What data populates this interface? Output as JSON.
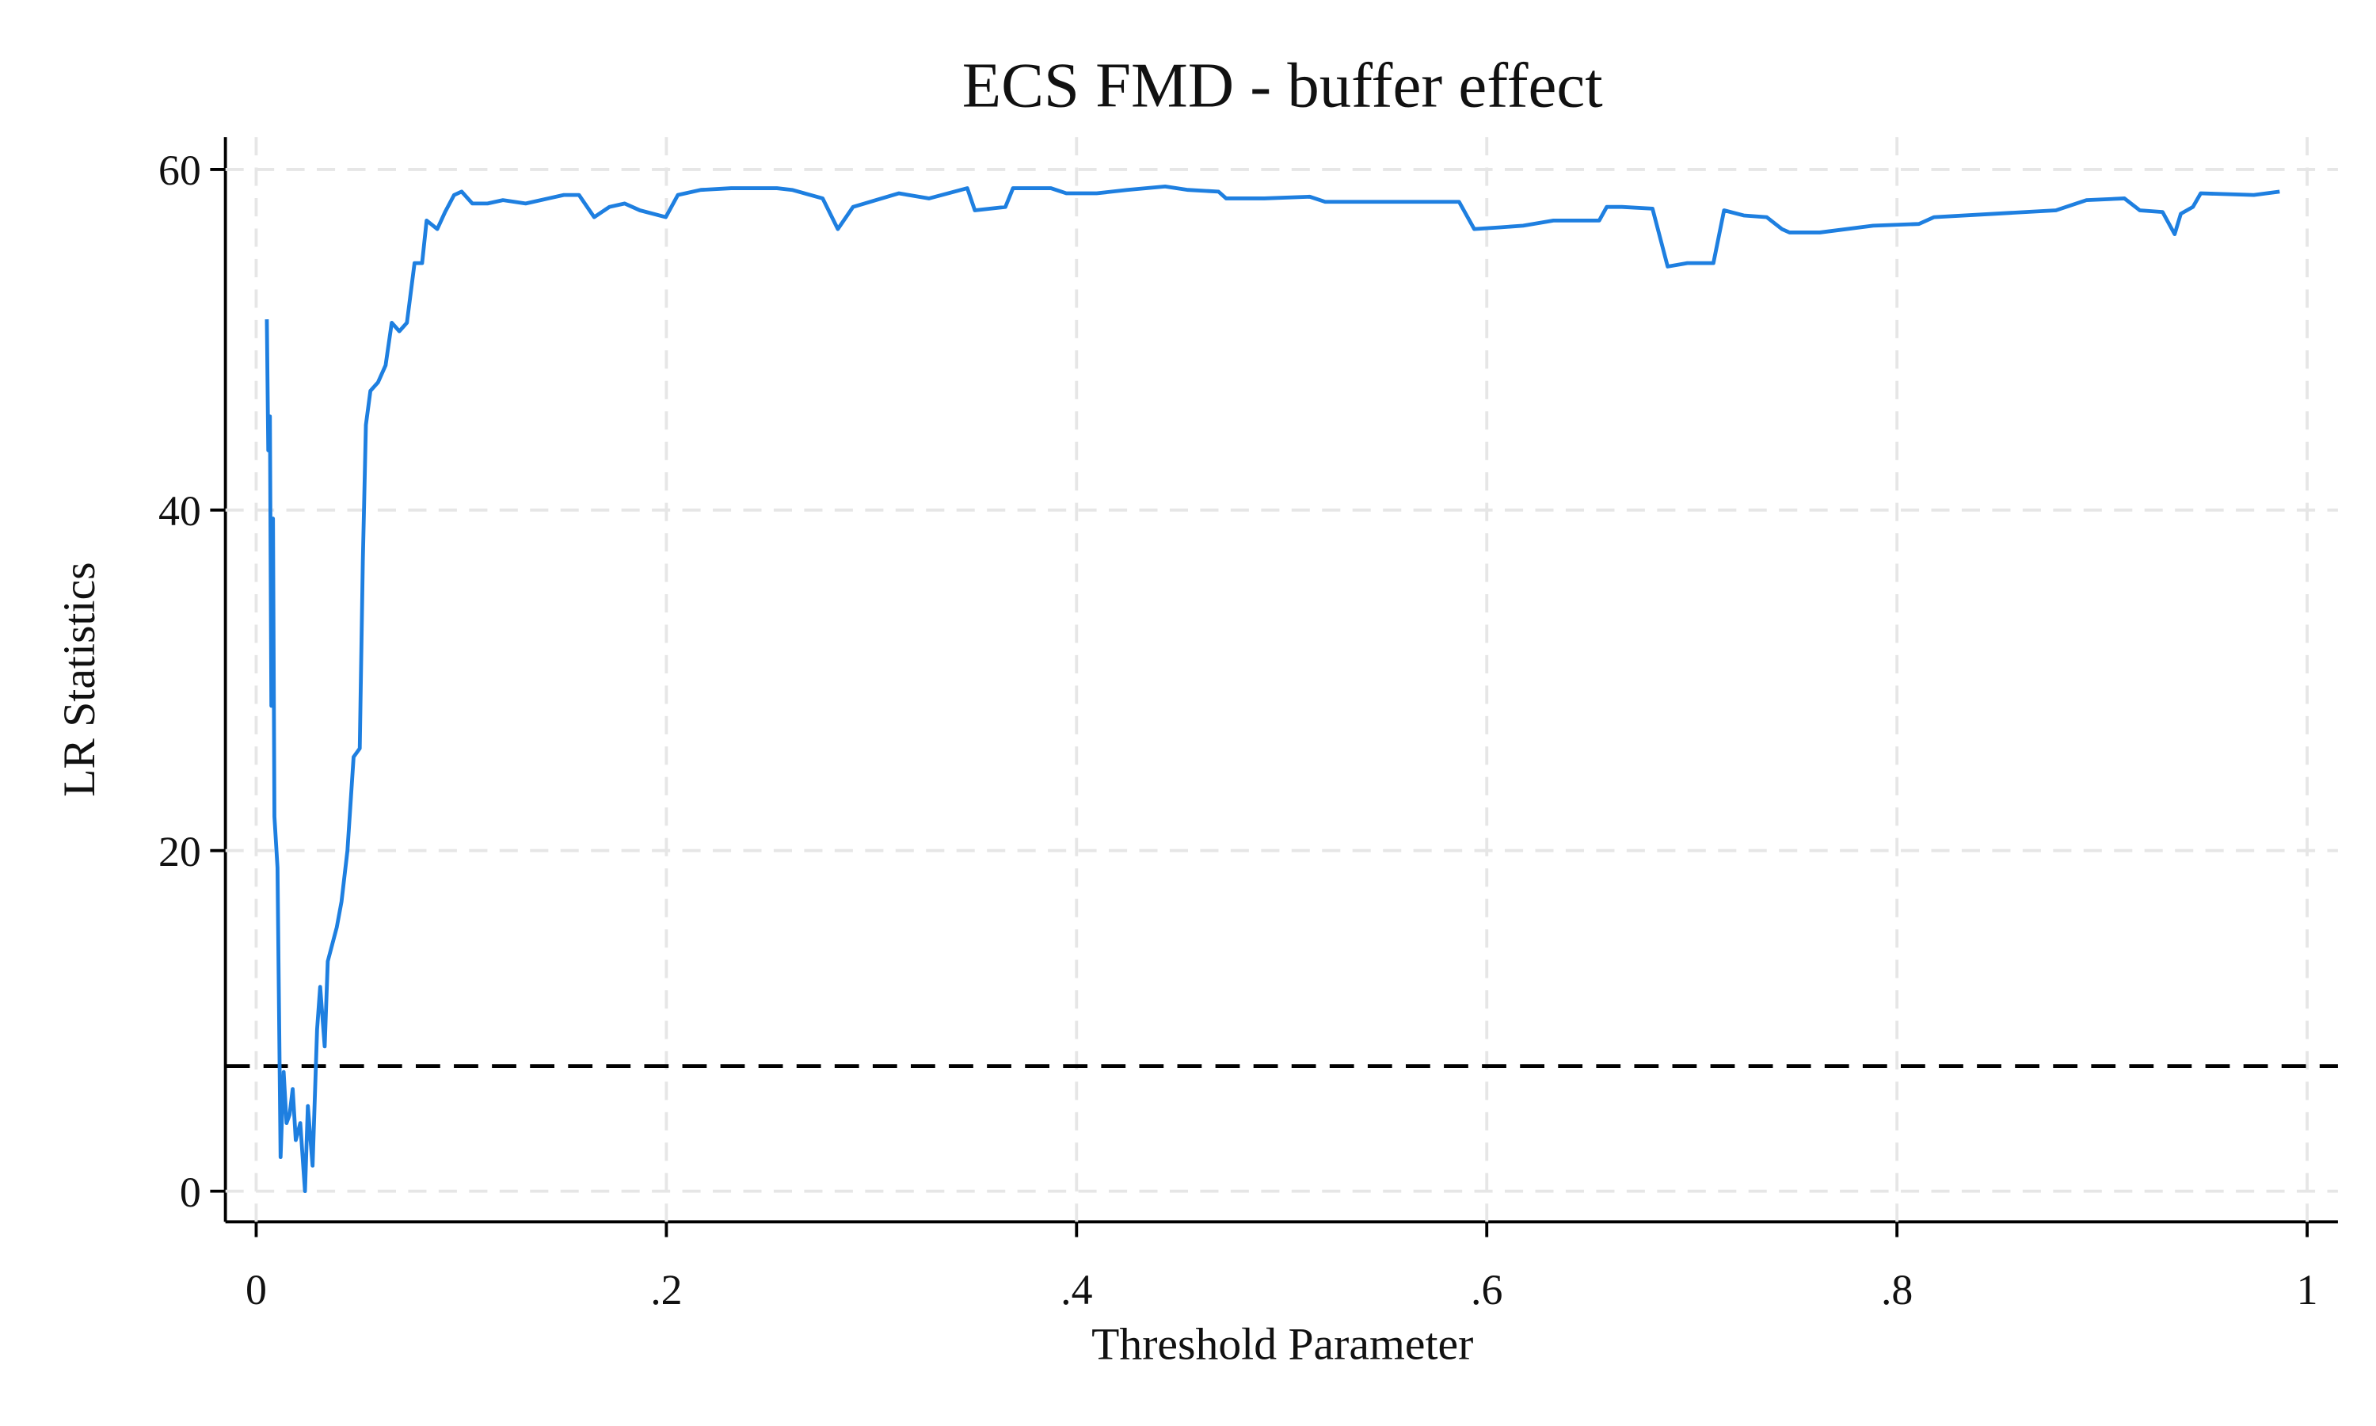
{
  "chart_data": {
    "type": "line",
    "title": "ECS FMD - buffer effect",
    "x_label": "Threshold Parameter",
    "y_label": "LR Statistics",
    "xlim": [
      -0.015,
      1.015
    ],
    "ylim": [
      -1.8,
      61.9
    ],
    "xticks": [
      0,
      {
        "value": 0.2,
        "label": ".2"
      },
      {
        "value": 0.4,
        "label": ".4"
      },
      {
        "value": 0.6,
        "label": ".6"
      },
      {
        "value": 0.8,
        "label": ".8"
      },
      1
    ],
    "yticks": [
      0,
      20,
      40,
      60
    ],
    "grid": true,
    "reference_line": 7.35,
    "x": [
      0.0052,
      0.0059,
      0.0067,
      0.0074,
      0.0082,
      0.0089,
      0.0104,
      0.0119,
      0.0134,
      0.0148,
      0.0163,
      0.0178,
      0.0193,
      0.0215,
      0.0238,
      0.0252,
      0.0275,
      0.0297,
      0.0312,
      0.0334,
      0.0349,
      0.0371,
      0.0393,
      0.0416,
      0.0445,
      0.0475,
      0.0505,
      0.052,
      0.0535,
      0.0557,
      0.0594,
      0.0631,
      0.0661,
      0.0698,
      0.0735,
      0.0772,
      0.0809,
      0.0831,
      0.0883,
      0.0921,
      0.0965,
      0.1002,
      0.1054,
      0.1128,
      0.1203,
      0.1314,
      0.1425,
      0.15,
      0.1574,
      0.1648,
      0.1722,
      0.1797,
      0.1871,
      0.1997,
      0.2056,
      0.2168,
      0.2316,
      0.2539,
      0.2613,
      0.2762,
      0.2836,
      0.291,
      0.3022,
      0.3133,
      0.3281,
      0.3467,
      0.3504,
      0.3653,
      0.369,
      0.3875,
      0.395,
      0.4098,
      0.4246,
      0.4432,
      0.4543,
      0.4692,
      0.4729,
      0.4915,
      0.5137,
      0.5212,
      0.5434,
      0.5865,
      0.5939,
      0.6065,
      0.6177,
      0.6325,
      0.6548,
      0.6585,
      0.6659,
      0.6808,
      0.6882,
      0.6978,
      0.7105,
      0.7157,
      0.7253,
      0.7365,
      0.7439,
      0.7476,
      0.7624,
      0.7884,
      0.8107,
      0.8181,
      0.8478,
      0.8775,
      0.8924,
      0.9109,
      0.9184,
      0.9295,
      0.9354,
      0.9384,
      0.9443,
      0.9481,
      0.974,
      0.9866
    ],
    "series": [
      {
        "color": "#1e7fe0",
        "values": [
          51.2,
          43.5,
          45.5,
          28.5,
          39.5,
          22,
          19,
          2,
          7,
          4,
          4.5,
          6,
          3,
          4,
          0,
          5,
          1.5,
          9.5,
          12,
          8.5,
          13.5,
          14.5,
          15.5,
          17,
          20,
          25.5,
          26,
          37,
          45,
          47,
          47.5,
          48.5,
          51,
          50.5,
          51,
          54.5,
          54.5,
          57,
          56.5,
          57.5,
          58.5,
          58.7,
          58,
          58,
          58.2,
          58,
          58.3,
          58.5,
          58.5,
          57.2,
          57.8,
          58,
          57.6,
          57.2,
          58.5,
          58.8,
          58.9,
          58.9,
          58.8,
          58.3,
          56.5,
          57.8,
          58.2,
          58.6,
          58.3,
          58.9,
          57.6,
          57.8,
          58.9,
          58.9,
          58.6,
          58.6,
          58.8,
          59,
          58.8,
          58.7,
          58.3,
          58.3,
          58.4,
          58.1,
          58.1,
          58.1,
          56.5,
          56.6,
          56.7,
          57,
          57,
          57.8,
          57.8,
          57.7,
          54.3,
          54.5,
          54.5,
          57.6,
          57.3,
          57.2,
          56.5,
          56.3,
          56.3,
          56.7,
          56.8,
          57.2,
          57.4,
          57.6,
          58.2,
          58.3,
          57.6,
          57.5,
          56.2,
          57.4,
          57.8,
          58.6,
          58.5,
          58.7
        ]
      }
    ]
  }
}
